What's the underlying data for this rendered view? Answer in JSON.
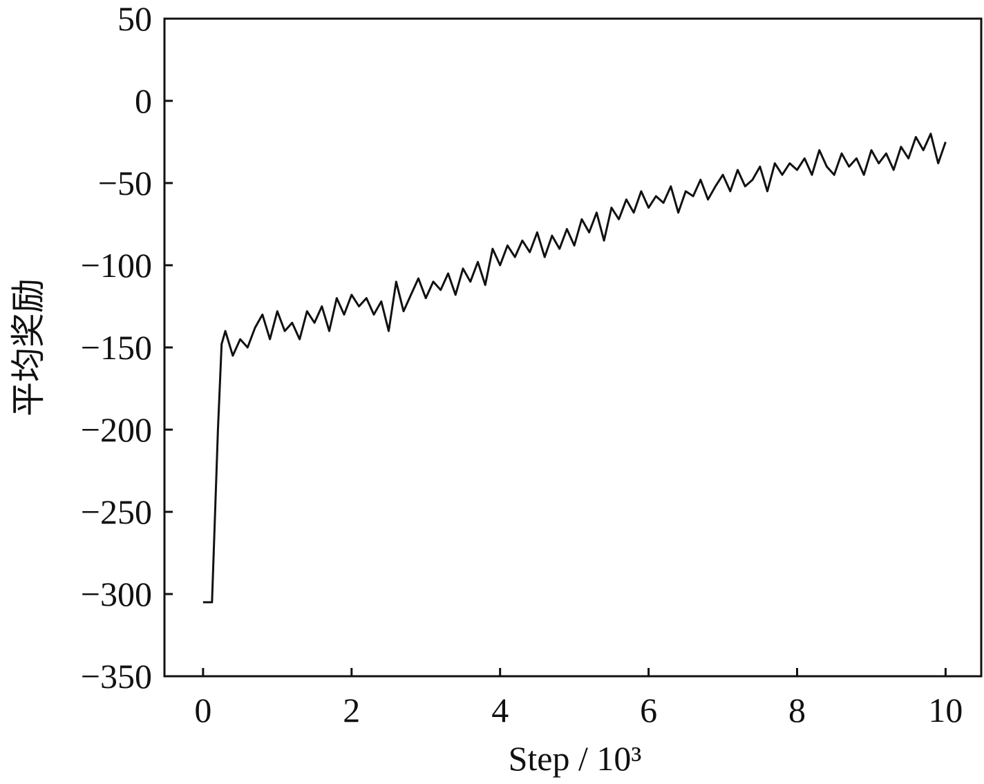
{
  "chart_data": {
    "type": "line",
    "x_label": "Step / 10³",
    "y_label": "平均奖励",
    "xlim": [
      -0.52,
      10.48
    ],
    "ylim": [
      -350,
      50
    ],
    "xticks": [
      0,
      2,
      4,
      6,
      8,
      10
    ],
    "yticks": [
      {
        "value": -350,
        "label": "−350"
      },
      {
        "value": -300,
        "label": "−300"
      },
      {
        "value": -250,
        "label": "−250"
      },
      {
        "value": -200,
        "label": "−200"
      },
      {
        "value": -150,
        "label": "−150"
      },
      {
        "value": -100,
        "label": "−100"
      },
      {
        "value": -50,
        "label": "−50"
      },
      0,
      50
    ],
    "x": [
      0,
      0.12,
      0.2,
      0.25,
      0.3,
      0.4,
      0.5,
      0.6,
      0.7,
      0.8,
      0.9,
      1.0,
      1.1,
      1.2,
      1.3,
      1.4,
      1.5,
      1.6,
      1.7,
      1.8,
      1.9,
      2.0,
      2.1,
      2.2,
      2.3,
      2.4,
      2.5,
      2.6,
      2.7,
      2.8,
      2.9,
      3.0,
      3.1,
      3.2,
      3.3,
      3.4,
      3.5,
      3.6,
      3.7,
      3.8,
      3.9,
      4.0,
      4.1,
      4.2,
      4.3,
      4.4,
      4.5,
      4.6,
      4.7,
      4.8,
      4.9,
      5.0,
      5.1,
      5.2,
      5.3,
      5.4,
      5.5,
      5.6,
      5.7,
      5.8,
      5.9,
      6.0,
      6.1,
      6.2,
      6.3,
      6.4,
      6.5,
      6.6,
      6.7,
      6.8,
      6.9,
      7.0,
      7.1,
      7.2,
      7.3,
      7.4,
      7.5,
      7.6,
      7.7,
      7.8,
      7.9,
      8.0,
      8.1,
      8.2,
      8.3,
      8.4,
      8.5,
      8.6,
      8.7,
      8.8,
      8.9,
      9.0,
      9.1,
      9.2,
      9.3,
      9.4,
      9.5,
      9.6,
      9.7,
      9.8,
      9.9,
      10.0
    ],
    "series": [
      {
        "color": "#111111",
        "values": [
          -305,
          -305,
          -200,
          -148,
          -140,
          -155,
          -145,
          -150,
          -138,
          -130,
          -145,
          -128,
          -140,
          -135,
          -145,
          -128,
          -135,
          -125,
          -140,
          -120,
          -130,
          -118,
          -125,
          -120,
          -130,
          -122,
          -140,
          -110,
          -128,
          -118,
          -108,
          -120,
          -110,
          -115,
          -105,
          -118,
          -102,
          -110,
          -98,
          -112,
          -90,
          -100,
          -88,
          -95,
          -85,
          -92,
          -80,
          -95,
          -82,
          -90,
          -78,
          -88,
          -72,
          -80,
          -68,
          -85,
          -65,
          -72,
          -60,
          -68,
          -55,
          -65,
          -58,
          -62,
          -52,
          -68,
          -55,
          -58,
          -48,
          -60,
          -52,
          -45,
          -55,
          -42,
          -52,
          -48,
          -40,
          -55,
          -38,
          -45,
          -38,
          -42,
          -35,
          -45,
          -30,
          -40,
          -45,
          -32,
          -40,
          -35,
          -45,
          -30,
          -38,
          -32,
          -42,
          -28,
          -35,
          -22,
          -30,
          -20,
          -38,
          -25
        ]
      }
    ]
  }
}
